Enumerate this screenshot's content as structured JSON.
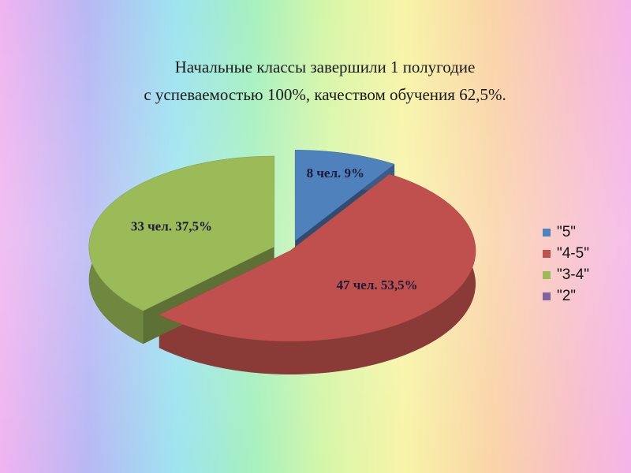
{
  "chart_data": {
    "type": "pie3d",
    "title": [
      "Начальные классы завершили 1 полугодие",
      "с успеваемостью 100%, качеством обучения 62,5%."
    ],
    "categories": [
      "\"5\"",
      "\"4-5\"",
      "\"3-4\"",
      "\"2\""
    ],
    "values": [
      9,
      53.5,
      37.5,
      0
    ],
    "value_labels": [
      "8 чел.  9%",
      "47 чел. 53,5%",
      "33 чел. 37,5%",
      null
    ],
    "colors": [
      "#4f81bd",
      "#c0504d",
      "#9bbb59",
      "#8064a2"
    ],
    "legend": "right"
  }
}
